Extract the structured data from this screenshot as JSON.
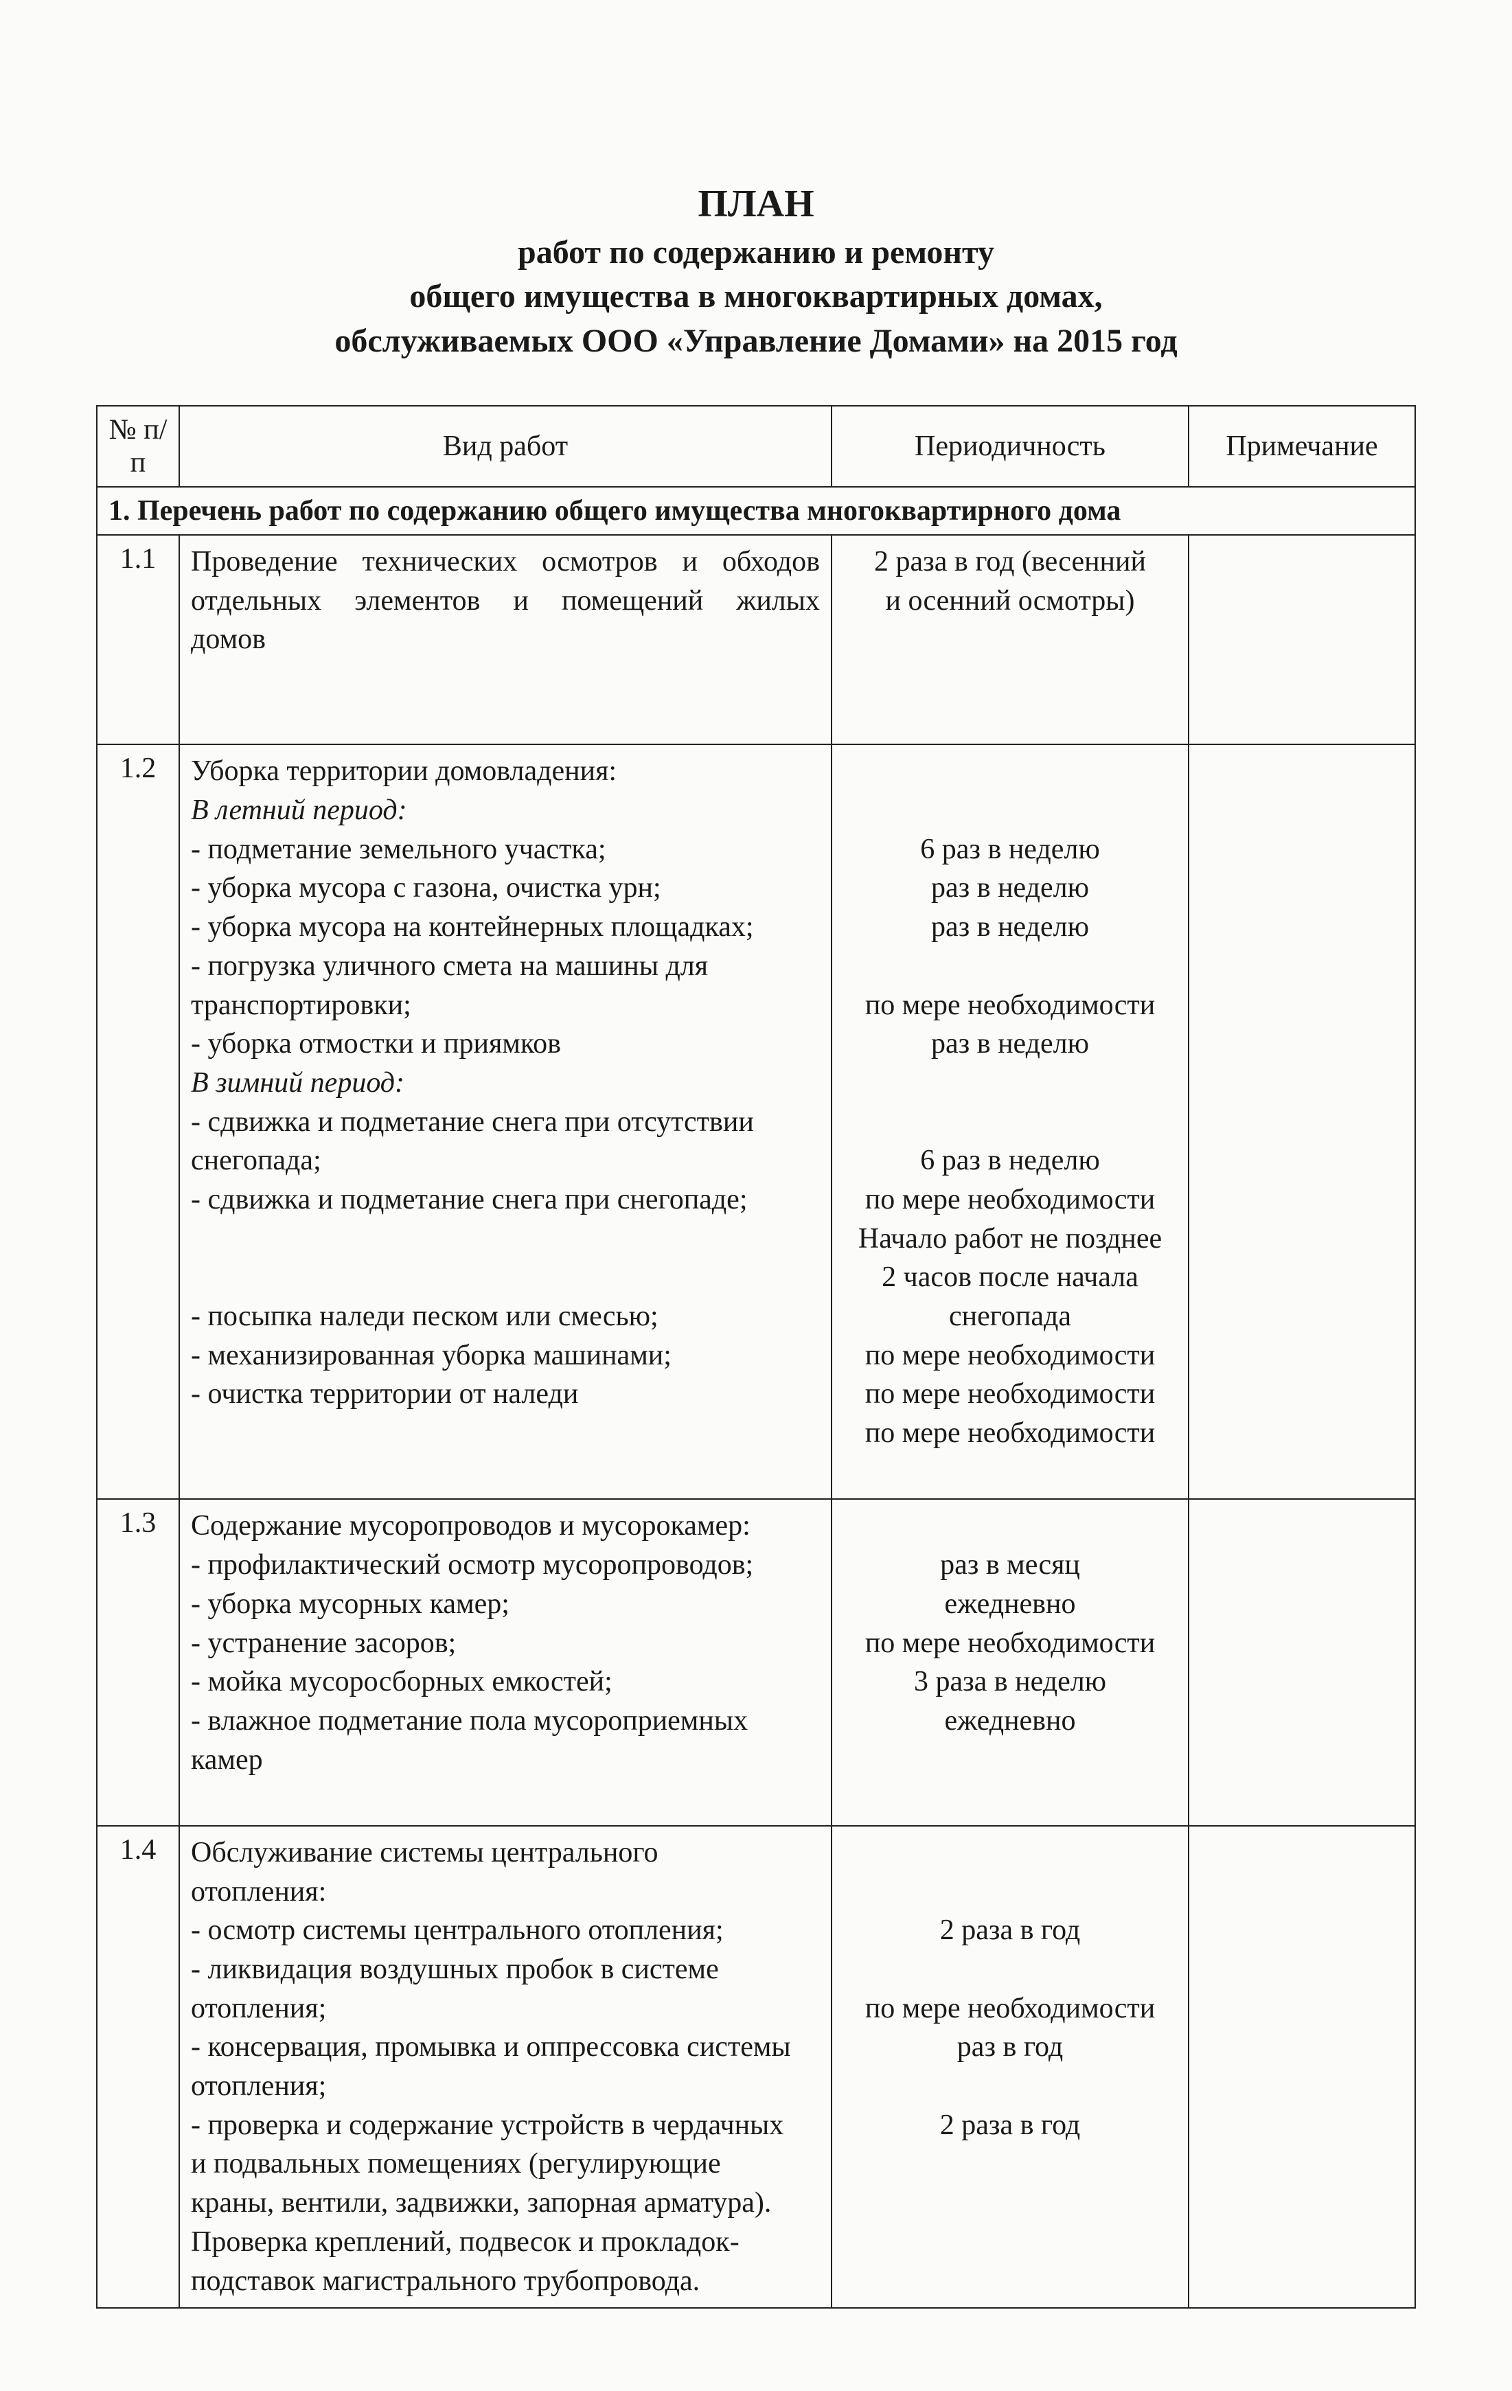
{
  "styling": {
    "page_bg": "#fbfbf9",
    "text_color": "#1a1a1a",
    "border_color": "#222222",
    "font_family": "Times New Roman",
    "title_fontsize_pt": 42,
    "subtitle_fontsize_pt": 36,
    "body_fontsize_pt": 32,
    "col_widths": {
      "num": 120,
      "work": 950,
      "period": 520
    }
  },
  "title": {
    "line1": "ПЛАН",
    "line2": "работ по содержанию и ремонту",
    "line3": "общего имущества в многоквартирных домах,",
    "line4": "обслуживаемых ООО «Управление Домами» на 2015 год"
  },
  "headers": {
    "num": "№ п/п",
    "work": "Вид работ",
    "period": "Периодичность",
    "note": "Примечание"
  },
  "section1": {
    "title": "1.  Перечень работ по содержанию общего имущества многоквартирного дома"
  },
  "rows": {
    "r11": {
      "num": "1.1",
      "work_lines": [
        {
          "text": "Проведение технических осмотров и обходов",
          "justify": true
        },
        {
          "text": "отдельных элементов и помещений жилых",
          "justify": true
        },
        {
          "text": "домов"
        },
        {
          "spacer": true
        },
        {
          "spacer": true
        }
      ],
      "period_lines": [
        {
          "text": "2 раза в год (весенний"
        },
        {
          "text": "и осенний осмотры)"
        }
      ]
    },
    "r12": {
      "num": "1.2",
      "work_lines": [
        {
          "text": "Уборка территории домовладения:"
        },
        {
          "text": "В летний период:",
          "italic": true
        },
        {
          "text": "- подметание земельного участка;"
        },
        {
          "text": "- уборка мусора с газона, очистка урн;"
        },
        {
          "text": "- уборка мусора на контейнерных площадках;"
        },
        {
          "text": "- погрузка уличного смета на машины для"
        },
        {
          "text": "транспортировки;"
        },
        {
          "text": "- уборка отмостки и приямков"
        },
        {
          "text": "В зимний период:",
          "italic": true
        },
        {
          "text": "- сдвижка и подметание снега при отсутствии"
        },
        {
          "text": "снегопада;"
        },
        {
          "text": "- сдвижка и подметание снега при снегопаде;"
        },
        {
          "spacer": true
        },
        {
          "spacer": true
        },
        {
          "text": "- посыпка наледи песком или смесью;"
        },
        {
          "text": "- механизированная уборка машинами;"
        },
        {
          "text": "- очистка территории от наледи"
        },
        {
          "spacer": true
        },
        {
          "spacer": true
        }
      ],
      "period_lines": [
        {
          "spacer": true
        },
        {
          "spacer": true
        },
        {
          "text": "6 раз в неделю"
        },
        {
          "text": "раз в неделю"
        },
        {
          "text": "раз в неделю"
        },
        {
          "spacer": true
        },
        {
          "text": "по мере необходимости"
        },
        {
          "text": "раз в неделю"
        },
        {
          "spacer": true
        },
        {
          "spacer": true
        },
        {
          "text": "6 раз в неделю"
        },
        {
          "text": "по мере необходимости"
        },
        {
          "text": "Начало работ не позднее"
        },
        {
          "text": "2 часов после начала"
        },
        {
          "text": "снегопада"
        },
        {
          "text": "по мере необходимости"
        },
        {
          "text": "по мере необходимости"
        },
        {
          "text": "по мере необходимости"
        }
      ]
    },
    "r13": {
      "num": "1.3",
      "work_lines": [
        {
          "text": "Содержание мусоропроводов и мусорокамер:"
        },
        {
          "text": "- профилактический осмотр мусоропроводов;"
        },
        {
          "text": "- уборка мусорных камер;"
        },
        {
          "text": "- устранение засоров;"
        },
        {
          "text": "- мойка мусоросборных емкостей;"
        },
        {
          "text": "- влажное подметание пола мусороприемных"
        },
        {
          "text": "камер"
        },
        {
          "spacer": true
        }
      ],
      "period_lines": [
        {
          "spacer": true
        },
        {
          "text": "раз в месяц"
        },
        {
          "text": "ежедневно"
        },
        {
          "text": "по мере необходимости"
        },
        {
          "text": "3 раза в неделю"
        },
        {
          "text": "ежедневно"
        }
      ]
    },
    "r14": {
      "num": "1.4",
      "work_lines": [
        {
          "text": "Обслуживание системы центрального"
        },
        {
          "text": "отопления:"
        },
        {
          "text": "- осмотр системы центрального отопления;"
        },
        {
          "text": "- ликвидация воздушных пробок в системе"
        },
        {
          "text": "отопления;"
        },
        {
          "text": "- консервация, промывка и оппрессовка системы"
        },
        {
          "text": "отопления;"
        },
        {
          "text": "- проверка и содержание устройств в чердачных"
        },
        {
          "text": "и подвальных помещениях (регулирующие"
        },
        {
          "text": "краны, вентили, задвижки, запорная арматура)."
        },
        {
          "text": "Проверка креплений, подвесок и прокладок-"
        },
        {
          "text": "подставок магистрального трубопровода."
        }
      ],
      "period_lines": [
        {
          "spacer": true
        },
        {
          "spacer": true
        },
        {
          "text": "2 раза в год"
        },
        {
          "spacer": true
        },
        {
          "text": "по мере необходимости"
        },
        {
          "text": "раз в год"
        },
        {
          "spacer": true
        },
        {
          "text": "2 раза в год"
        }
      ]
    }
  }
}
